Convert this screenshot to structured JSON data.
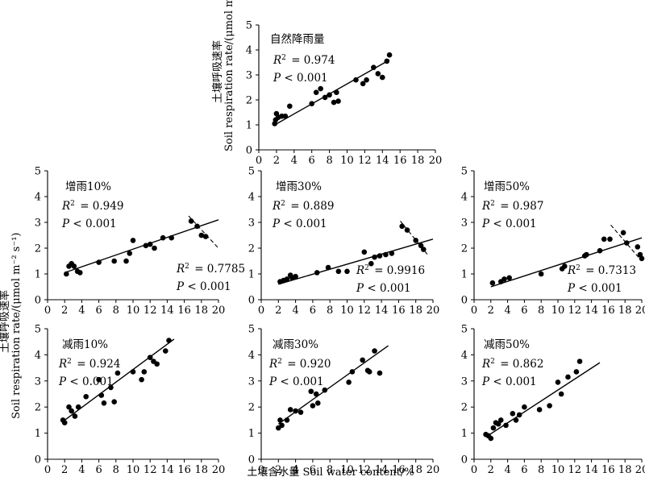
{
  "figure": {
    "xlabel": "土壤含水量 Soil water content/%",
    "ylabel_cn": "土壤呼吸速率",
    "ylabel_en_prefix": "Soil respiration rate/",
    "ylabel_unit": "(μmol m⁻² s⁻¹)"
  },
  "chart_data": [
    {
      "id": "natural",
      "type": "scatter",
      "title": "自然降雨量",
      "stats": [
        {
          "r2": "= 0.974",
          "p": "< 0.001"
        }
      ],
      "xlim": [
        0,
        20
      ],
      "ylim": [
        0,
        5
      ],
      "xticks": [
        "0",
        "2",
        "4",
        "6",
        "8",
        "10",
        "12",
        "14",
        "16",
        "18",
        "20"
      ],
      "yticks": [
        "0",
        "1",
        "2",
        "3",
        "4",
        "5"
      ],
      "points": [
        [
          1.8,
          1.05
        ],
        [
          1.9,
          1.2
        ],
        [
          2.0,
          1.45
        ],
        [
          2.2,
          1.3
        ],
        [
          2.6,
          1.35
        ],
        [
          3.0,
          1.35
        ],
        [
          3.5,
          1.75
        ],
        [
          6.0,
          1.85
        ],
        [
          6.5,
          2.3
        ],
        [
          7.0,
          2.45
        ],
        [
          7.5,
          2.1
        ],
        [
          8.0,
          2.2
        ],
        [
          8.5,
          1.9
        ],
        [
          9.0,
          1.95
        ],
        [
          8.8,
          2.3
        ],
        [
          11.0,
          2.8
        ],
        [
          11.8,
          2.65
        ],
        [
          12.2,
          2.8
        ],
        [
          13.0,
          3.3
        ],
        [
          13.5,
          3.05
        ],
        [
          14.0,
          2.9
        ],
        [
          14.5,
          3.55
        ],
        [
          14.8,
          3.8
        ]
      ],
      "fits": [
        {
          "x": [
            1.8,
            14.8
          ],
          "y": [
            1.0,
            3.6
          ],
          "dashed": false
        }
      ]
    },
    {
      "id": "inc10",
      "type": "scatter",
      "title": "增雨10%",
      "stats": [
        {
          "r2": "= 0.949",
          "p": "< 0.001"
        },
        {
          "r2": "= 0.7785",
          "p": "< 0.001"
        }
      ],
      "xlim": [
        0,
        20
      ],
      "ylim": [
        0,
        5
      ],
      "xticks": [
        "0",
        "2",
        "4",
        "6",
        "8",
        "10",
        "12",
        "14",
        "16",
        "18",
        "20"
      ],
      "yticks": [
        "0",
        "1",
        "2",
        "3",
        "4",
        "5"
      ],
      "points": [
        [
          2.2,
          1.0
        ],
        [
          2.5,
          1.3
        ],
        [
          2.8,
          1.4
        ],
        [
          3.1,
          1.3
        ],
        [
          3.5,
          1.1
        ],
        [
          3.8,
          1.05
        ],
        [
          6.0,
          1.45
        ],
        [
          7.8,
          1.5
        ],
        [
          9.2,
          1.5
        ],
        [
          9.6,
          1.8
        ],
        [
          10.0,
          2.3
        ],
        [
          11.5,
          2.1
        ],
        [
          12.0,
          2.15
        ],
        [
          12.5,
          2.0
        ],
        [
          13.5,
          2.4
        ],
        [
          14.5,
          2.4
        ],
        [
          16.8,
          3.05
        ],
        [
          17.5,
          2.85
        ],
        [
          18.0,
          2.5
        ],
        [
          18.5,
          2.45
        ]
      ],
      "fits": [
        {
          "x": [
            2.0,
            20.0
          ],
          "y": [
            1.05,
            3.1
          ],
          "dashed": false
        },
        {
          "x": [
            16.5,
            20.0
          ],
          "y": [
            3.25,
            2.0
          ],
          "dashed": true
        }
      ]
    },
    {
      "id": "inc30",
      "type": "scatter",
      "title": "增雨30%",
      "stats": [
        {
          "r2": "= 0.889",
          "p": "< 0.001"
        },
        {
          "r2": "= 0.9916",
          "p": "< 0.001"
        }
      ],
      "xlim": [
        0,
        20
      ],
      "ylim": [
        0,
        5
      ],
      "xticks": [
        "0",
        "2",
        "4",
        "6",
        "8",
        "10",
        "12",
        "14",
        "16",
        "18",
        "20"
      ],
      "yticks": [
        "0",
        "1",
        "2",
        "3",
        "4",
        "5"
      ],
      "points": [
        [
          2.2,
          0.7
        ],
        [
          2.6,
          0.75
        ],
        [
          3.0,
          0.8
        ],
        [
          3.4,
          0.95
        ],
        [
          3.6,
          0.85
        ],
        [
          4.0,
          0.9
        ],
        [
          6.5,
          1.05
        ],
        [
          7.8,
          1.25
        ],
        [
          9.0,
          1.1
        ],
        [
          10.0,
          1.1
        ],
        [
          12.0,
          1.85
        ],
        [
          12.8,
          1.4
        ],
        [
          13.2,
          1.65
        ],
        [
          13.8,
          1.7
        ],
        [
          14.5,
          1.75
        ],
        [
          15.2,
          1.8
        ],
        [
          16.4,
          2.85
        ],
        [
          17.0,
          2.7
        ],
        [
          18.0,
          2.3
        ],
        [
          18.6,
          2.1
        ],
        [
          18.9,
          1.95
        ]
      ],
      "fits": [
        {
          "x": [
            2.0,
            20.0
          ],
          "y": [
            0.6,
            2.35
          ],
          "dashed": false
        },
        {
          "x": [
            16.2,
            19.5
          ],
          "y": [
            3.05,
            1.7
          ],
          "dashed": true
        }
      ]
    },
    {
      "id": "inc50",
      "type": "scatter",
      "title": "增雨50%",
      "stats": [
        {
          "r2": "= 0.987",
          "p": "< 0.001"
        },
        {
          "r2": "= 0.7313",
          "p": "< 0.001"
        }
      ],
      "xlim": [
        0,
        20
      ],
      "ylim": [
        0,
        5
      ],
      "xticks": [
        "0",
        "2",
        "4",
        "6",
        "8",
        "10",
        "12",
        "14",
        "16",
        "18",
        "20"
      ],
      "yticks": [
        "0",
        "1",
        "2",
        "3",
        "4",
        "5"
      ],
      "points": [
        [
          2.2,
          0.65
        ],
        [
          3.2,
          0.7
        ],
        [
          3.6,
          0.8
        ],
        [
          4.2,
          0.85
        ],
        [
          8.0,
          1.0
        ],
        [
          10.5,
          1.2
        ],
        [
          10.8,
          1.3
        ],
        [
          13.2,
          1.7
        ],
        [
          13.4,
          1.75
        ],
        [
          15.0,
          1.9
        ],
        [
          15.5,
          2.35
        ],
        [
          16.2,
          2.35
        ],
        [
          17.8,
          2.6
        ],
        [
          18.2,
          2.2
        ],
        [
          19.5,
          2.05
        ],
        [
          19.8,
          1.75
        ],
        [
          20.0,
          1.6
        ]
      ],
      "fits": [
        {
          "x": [
            2.0,
            20.0
          ],
          "y": [
            0.5,
            2.4
          ],
          "dashed": false
        },
        {
          "x": [
            16.3,
            20.0
          ],
          "y": [
            2.9,
            1.5
          ],
          "dashed": true
        }
      ]
    },
    {
      "id": "dec10",
      "type": "scatter",
      "title": "减雨10%",
      "stats": [
        {
          "r2": "= 0.924",
          "p": "< 0.001"
        }
      ],
      "xlim": [
        0,
        20
      ],
      "ylim": [
        0,
        5
      ],
      "xticks": [
        "0",
        "2",
        "4",
        "6",
        "8",
        "10",
        "12",
        "14",
        "16",
        "18",
        "20"
      ],
      "yticks": [
        "0",
        "1",
        "2",
        "3",
        "4",
        "5"
      ],
      "points": [
        [
          1.8,
          1.5
        ],
        [
          2.0,
          1.4
        ],
        [
          2.5,
          2.0
        ],
        [
          2.8,
          1.85
        ],
        [
          3.2,
          1.65
        ],
        [
          3.6,
          2.0
        ],
        [
          4.5,
          2.4
        ],
        [
          6.0,
          3.05
        ],
        [
          6.3,
          2.45
        ],
        [
          6.6,
          2.15
        ],
        [
          7.4,
          2.75
        ],
        [
          7.8,
          2.2
        ],
        [
          8.2,
          3.3
        ],
        [
          10.0,
          3.35
        ],
        [
          11.0,
          3.05
        ],
        [
          11.3,
          3.35
        ],
        [
          12.0,
          3.9
        ],
        [
          12.4,
          3.75
        ],
        [
          12.8,
          3.65
        ],
        [
          13.8,
          4.15
        ],
        [
          14.2,
          4.55
        ]
      ],
      "fits": [
        {
          "x": [
            1.8,
            14.8
          ],
          "y": [
            1.45,
            4.6
          ],
          "dashed": false
        }
      ]
    },
    {
      "id": "dec30",
      "type": "scatter",
      "title": "减雨30%",
      "stats": [
        {
          "r2": "= 0.920",
          "p": "< 0.001"
        }
      ],
      "xlim": [
        0,
        20
      ],
      "ylim": [
        0,
        5
      ],
      "xticks": [
        "0",
        "2",
        "4",
        "6",
        "8",
        "10",
        "12",
        "14",
        "16",
        "18",
        "20"
      ],
      "yticks": [
        "0",
        "1",
        "2",
        "3",
        "4",
        "5"
      ],
      "points": [
        [
          2.0,
          1.2
        ],
        [
          2.2,
          1.5
        ],
        [
          2.4,
          1.3
        ],
        [
          3.0,
          1.5
        ],
        [
          3.4,
          1.9
        ],
        [
          4.0,
          1.85
        ],
        [
          4.6,
          1.8
        ],
        [
          5.8,
          2.6
        ],
        [
          6.0,
          2.05
        ],
        [
          6.4,
          2.5
        ],
        [
          6.6,
          2.15
        ],
        [
          7.4,
          2.65
        ],
        [
          10.2,
          2.95
        ],
        [
          10.6,
          3.35
        ],
        [
          11.8,
          3.8
        ],
        [
          12.4,
          3.4
        ],
        [
          12.6,
          3.35
        ],
        [
          13.2,
          4.15
        ],
        [
          13.8,
          3.3
        ]
      ],
      "fits": [
        {
          "x": [
            2.0,
            14.8
          ],
          "y": [
            1.35,
            4.35
          ],
          "dashed": false
        }
      ]
    },
    {
      "id": "dec50",
      "type": "scatter",
      "title": "减雨50%",
      "stats": [
        {
          "r2": "= 0.862",
          "p": "< 0.001"
        }
      ],
      "xlim": [
        0,
        20
      ],
      "ylim": [
        0,
        5
      ],
      "xticks": [
        "0",
        "2",
        "4",
        "6",
        "8",
        "10",
        "12",
        "14",
        "16",
        "18",
        "20"
      ],
      "yticks": [
        "0",
        "1",
        "2",
        "3",
        "4",
        "5"
      ],
      "points": [
        [
          1.4,
          0.95
        ],
        [
          1.7,
          0.9
        ],
        [
          2.0,
          0.8
        ],
        [
          2.3,
          1.2
        ],
        [
          2.6,
          1.4
        ],
        [
          2.9,
          1.35
        ],
        [
          3.2,
          1.5
        ],
        [
          3.8,
          1.3
        ],
        [
          4.6,
          1.75
        ],
        [
          5.0,
          1.5
        ],
        [
          5.4,
          1.7
        ],
        [
          6.0,
          2.0
        ],
        [
          7.8,
          1.9
        ],
        [
          9.0,
          2.05
        ],
        [
          10.0,
          2.95
        ],
        [
          10.4,
          2.5
        ],
        [
          11.2,
          3.15
        ],
        [
          12.2,
          3.35
        ],
        [
          12.6,
          3.75
        ]
      ],
      "fits": [
        {
          "x": [
            1.4,
            15.0
          ],
          "y": [
            0.85,
            3.7
          ],
          "dashed": false
        }
      ]
    }
  ]
}
